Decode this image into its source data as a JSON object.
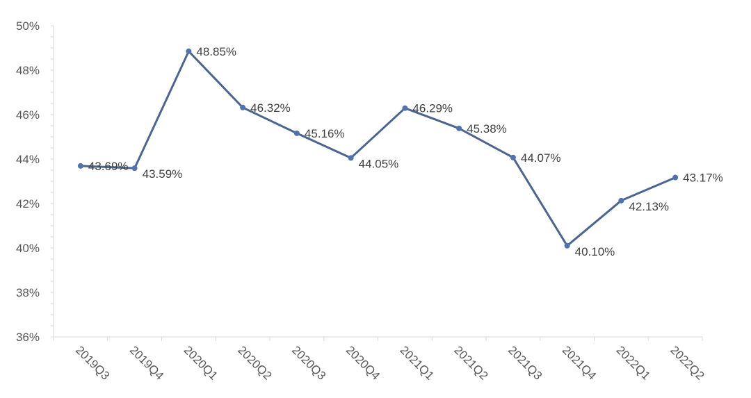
{
  "chart_data": {
    "type": "line",
    "title": "",
    "xlabel": "",
    "ylabel": "",
    "categories": [
      "2019Q3",
      "2019Q4",
      "2020Q1",
      "2020Q2",
      "2020Q3",
      "2020Q4",
      "2021Q1",
      "2021Q2",
      "2021Q3",
      "2021Q4",
      "2022Q1",
      "2022Q2"
    ],
    "series": [
      {
        "values": [
          43.69,
          43.59,
          48.85,
          46.32,
          45.16,
          44.05,
          46.29,
          45.38,
          44.07,
          40.1,
          42.13,
          43.17
        ],
        "labels": [
          "43.69%",
          "43.59%",
          "48.85%",
          "46.32%",
          "45.16%",
          "44.05%",
          "46.29%",
          "45.38%",
          "44.07%",
          "40.10%",
          "42.13%",
          "43.17%"
        ]
      }
    ],
    "ylim": [
      36,
      50
    ],
    "yticks": [
      36,
      38,
      40,
      42,
      44,
      46,
      48,
      50
    ],
    "ytick_labels": [
      "36%",
      "38%",
      "40%",
      "42%",
      "44%",
      "46%",
      "48%",
      "50%"
    ],
    "grid": false,
    "legend": "none",
    "line_color": "#4a6592",
    "marker_color": "#4f72b0"
  }
}
